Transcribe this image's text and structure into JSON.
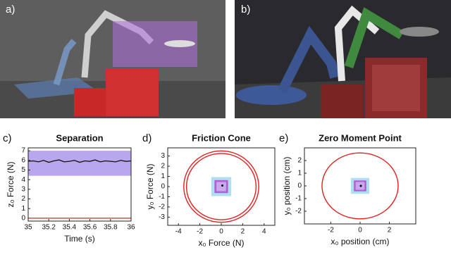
{
  "photos": [
    {
      "label": "a)"
    },
    {
      "label": "b)"
    }
  ],
  "chart_data": [
    {
      "type": "line",
      "panel": "c)",
      "title": "Separation",
      "xlabel": "Time (s)",
      "ylabel": "z₀ Force (N)",
      "xlim": [
        35,
        36
      ],
      "xticks": [
        35,
        35.2,
        35.4,
        35.6,
        35.8,
        36
      ],
      "ylim": [
        -0.3,
        7.3
      ],
      "yticks": [
        0,
        1,
        2,
        3,
        4,
        5,
        6,
        7
      ],
      "region": {
        "color": "#a08ae6",
        "ylo": 4.4,
        "yhi": 7
      },
      "series": [
        {
          "color": "#111111",
          "x": [
            35,
            35.05,
            35.1,
            35.15,
            35.2,
            35.25,
            35.3,
            35.35,
            35.4,
            35.45,
            35.5,
            35.55,
            35.6,
            35.65,
            35.7,
            35.75,
            35.8,
            35.85,
            35.9,
            35.95,
            36
          ],
          "values": [
            5.9,
            5.95,
            5.85,
            6.0,
            5.8,
            5.95,
            6.05,
            5.85,
            5.9,
            6.0,
            5.8,
            5.95,
            5.9,
            6.05,
            5.85,
            5.95,
            5.9,
            5.85,
            6.0,
            5.9,
            5.95
          ]
        },
        {
          "color": "#e02020",
          "x": [
            35,
            36
          ],
          "values": [
            0,
            0
          ]
        }
      ]
    },
    {
      "type": "scatter",
      "panel": "d)",
      "title": "Friction Cone",
      "xlabel": "x₀ Force (N)",
      "ylabel": "y₀ Force (N)",
      "xlim": [
        -5,
        5
      ],
      "xticks": [
        -4,
        -2,
        0,
        2,
        4
      ],
      "ylim": [
        -3.8,
        3.8
      ],
      "yticks": [
        -3,
        -2,
        -1,
        0,
        1,
        2,
        3
      ],
      "circles": [
        {
          "r": 3.5,
          "color": "#e02020"
        },
        {
          "r": 3.25,
          "color": "#e02020"
        }
      ],
      "boxes": [
        {
          "half": 0.9,
          "color": "#aee0f2"
        },
        {
          "half": 0.6,
          "color": "#b060d0"
        },
        {
          "half": 0.42,
          "color": "#c9a8ee"
        }
      ],
      "points": [
        {
          "x": 0.1,
          "y": 0.1
        }
      ]
    },
    {
      "type": "scatter",
      "panel": "e)",
      "title": "Zero Moment Point",
      "xlabel": "x₀ position (cm)",
      "ylabel": "y₀ position (cm)",
      "xlim": [
        -3.8,
        3.8
      ],
      "xticks": [
        -2,
        0,
        2
      ],
      "ylim": [
        -3,
        3
      ],
      "yticks": [
        -2,
        -1,
        0,
        1,
        2
      ],
      "circles": [
        {
          "r": 2.6,
          "color": "#e02020"
        }
      ],
      "boxes": [
        {
          "half": 0.6,
          "color": "#aee0f2"
        },
        {
          "half": 0.4,
          "color": "#b060d0"
        },
        {
          "half": 0.28,
          "color": "#c9a8ee"
        }
      ],
      "points": [
        {
          "x": 0.05,
          "y": 0.0
        }
      ]
    }
  ]
}
